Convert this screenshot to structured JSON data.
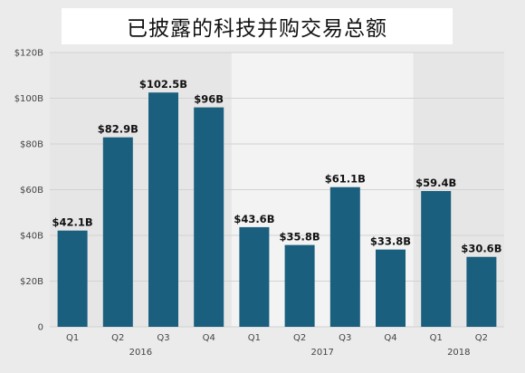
{
  "chart_data": {
    "type": "bar",
    "title": "已披露的科技并购交易总额",
    "categories": [
      "Q1",
      "Q2",
      "Q3",
      "Q4",
      "Q1",
      "Q2",
      "Q3",
      "Q4",
      "Q1",
      "Q2"
    ],
    "groups": [
      {
        "label": "2016",
        "categories": [
          "Q1",
          "Q2",
          "Q3",
          "Q4"
        ]
      },
      {
        "label": "2017",
        "categories": [
          "Q1",
          "Q2",
          "Q3",
          "Q4"
        ]
      },
      {
        "label": "2018",
        "categories": [
          "Q1",
          "Q2"
        ]
      }
    ],
    "values": [
      42.1,
      82.9,
      102.5,
      96,
      43.6,
      35.8,
      61.1,
      33.8,
      59.4,
      30.6
    ],
    "data_labels": [
      "$42.1B",
      "$82.9B",
      "$102.5B",
      "$96B",
      "$43.6B",
      "$35.8B",
      "$61.1B",
      "$33.8B",
      "$59.4B",
      "$30.6B"
    ],
    "y_ticks": [
      0,
      20,
      40,
      60,
      80,
      100,
      120
    ],
    "y_tick_labels": [
      "0",
      "$20B",
      "$40B",
      "$60B",
      "$80B",
      "$100B",
      "$120B"
    ],
    "ylim": [
      0,
      120
    ],
    "grid": true,
    "colors": {
      "bar": "#1b5f7e",
      "band_dark": "#e6e6e6",
      "band_light": "#f3f3f3",
      "grid": "#d2d2d2",
      "title_box": "#ffffff"
    }
  }
}
